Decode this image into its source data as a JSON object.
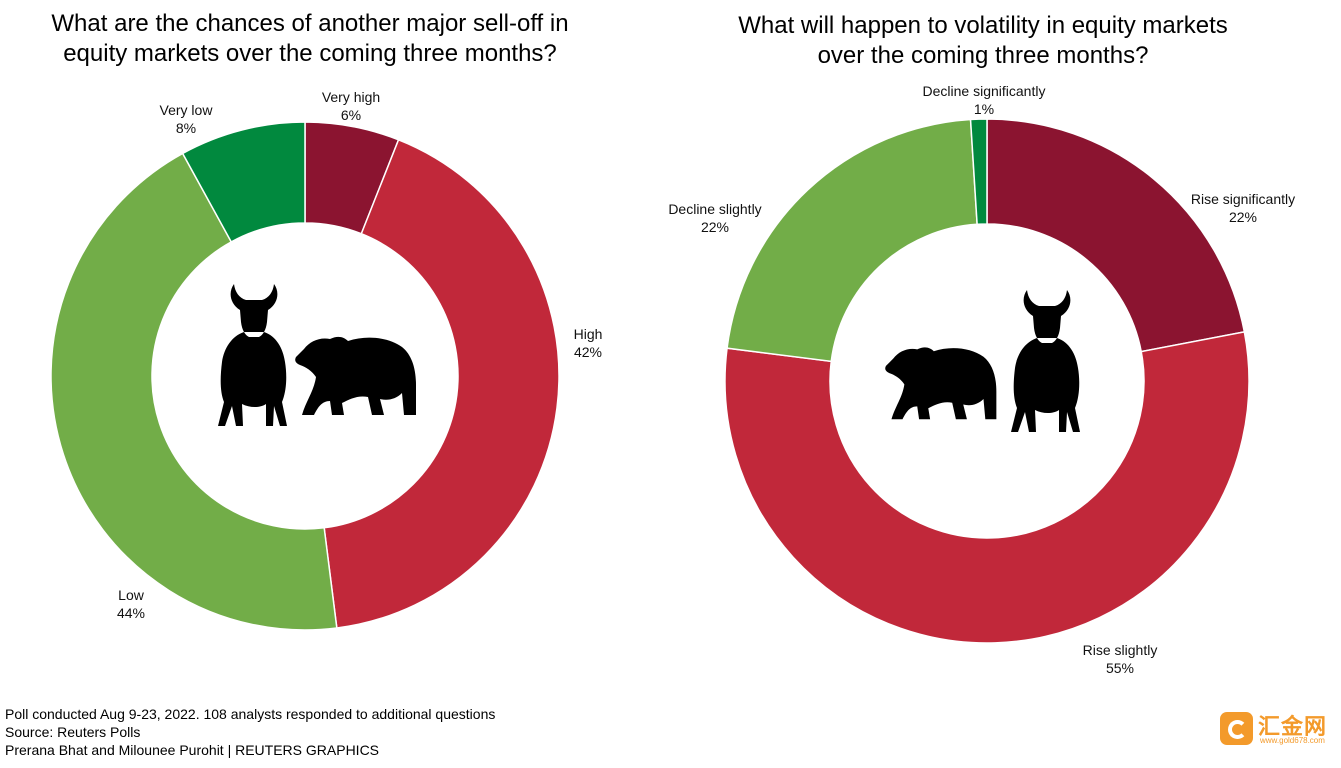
{
  "chart_data": [
    {
      "type": "pie",
      "donut": true,
      "title": "What are the chances of another major sell-off in\nequity markets over the coming three months?",
      "slices": [
        {
          "label": "Very high",
          "value": 6,
          "display": "6%",
          "color": "#8b1430"
        },
        {
          "label": "High",
          "value": 42,
          "display": "42%",
          "color": "#c1283a"
        },
        {
          "label": "Low",
          "value": 44,
          "display": "44%",
          "color": "#72ad48"
        },
        {
          "label": "Very low",
          "value": 8,
          "display": "8%",
          "color": "#01893e"
        }
      ],
      "center_icons": [
        "bull-icon",
        "bear-icon"
      ]
    },
    {
      "type": "pie",
      "donut": true,
      "title": "What will happen to volatility in equity markets\nover the coming three months?",
      "slices": [
        {
          "label": "Rise significantly",
          "value": 22,
          "display": "22%",
          "color": "#8b1430"
        },
        {
          "label": "Rise slightly",
          "value": 55,
          "display": "55%",
          "color": "#c1283a"
        },
        {
          "label": "Decline slightly",
          "value": 22,
          "display": "22%",
          "color": "#72ad48"
        },
        {
          "label": "Decline significantly",
          "value": 1,
          "display": "1%",
          "color": "#01893e"
        }
      ],
      "center_icons": [
        "bear-icon",
        "bull-icon"
      ]
    }
  ],
  "footer": {
    "note": "Poll conducted Aug 9-23, 2022. 108 analysts responded to additional questions",
    "source": "Source: Reuters Polls",
    "credit": "Prerana Bhat and Milounee Purohit | REUTERS GRAPHICS"
  },
  "watermark": {
    "brand": "汇金网",
    "url": "www.gold678.com"
  }
}
